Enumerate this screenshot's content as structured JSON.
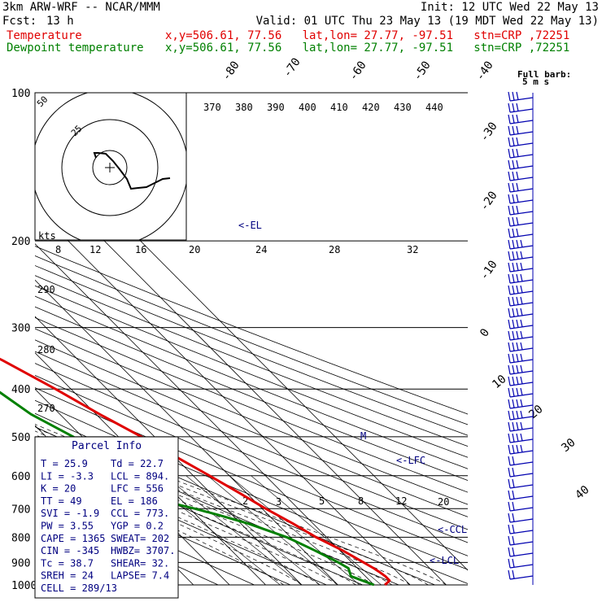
{
  "header": {
    "model": "3km ARW-WRF -- NCAR/MMM",
    "init": "Init: 12 UTC Wed 22 May 13",
    "fcst_label": "Fcst:",
    "fcst_value": "13 h",
    "valid": "Valid: 01 UTC Thu 23 May 13 (19 MDT Wed 22 May 13)",
    "temp_label": "Temperature",
    "temp_loc": "x,y=506.61, 77.56   lat,lon= 27.77, -97.51   stn=CRP ,72251",
    "dew_label": "Dewpoint temperature",
    "dew_loc": "x,y=506.61, 77.56   lat,lon= 27.77, -97.51   stn=CRP ,72251"
  },
  "colors": {
    "temperature": "#e00000",
    "dewpoint": "#008000",
    "barbs": "#0000b0",
    "text_blue": "#000080"
  },
  "parcel_info": {
    "title": "Parcel Info",
    "rows": [
      [
        "T  =   25.9",
        "Td =  22.7"
      ],
      [
        "LI =   -3.3",
        "LCL =  894."
      ],
      [
        "K  =     20",
        "LFC =  556"
      ],
      [
        "TT =     49",
        "EL  =  186"
      ],
      [
        "SVI =  -1.9",
        "CCL =  773."
      ],
      [
        "PW =   3.55",
        "YGP =   0.2"
      ],
      [
        "CAPE =  1365",
        "SWEAT=  202"
      ],
      [
        "CIN =  -345",
        "HWBZ= 3707."
      ],
      [
        "Tc =   38.7",
        "SHEAR=  32."
      ],
      [
        "SREH =   24",
        "LAPSE=  7.4"
      ],
      [
        "CELL = 289/13",
        ""
      ]
    ]
  },
  "hodograph": {
    "kts_label": "kts",
    "ring_labels": [
      "25",
      "50"
    ],
    "points": [
      [
        209,
        219
      ],
      [
        200,
        220
      ],
      [
        190,
        225
      ],
      [
        180,
        230
      ],
      [
        170,
        231
      ],
      [
        161,
        232
      ],
      [
        156,
        220
      ],
      [
        147,
        208
      ],
      [
        139,
        198
      ],
      [
        130,
        189
      ],
      [
        121,
        188
      ],
      [
        116,
        188
      ],
      [
        118,
        194
      ]
    ]
  },
  "barb_title": "Full barb:",
  "barb_units": "5 m s",
  "chart_data": {
    "type": "skew-T log-P sounding",
    "pressure_levels_hPa": [
      100,
      200,
      300,
      400,
      500,
      600,
      700,
      800,
      900,
      1000
    ],
    "isotherm_labels": [
      "-80",
      "-70",
      "-60",
      "-50",
      "-40",
      "-30",
      "-20",
      "-10",
      "0",
      "10",
      "20",
      "30",
      "40"
    ],
    "theta_e_labels": [
      "370",
      "380",
      "390",
      "400",
      "410",
      "420",
      "430",
      "440"
    ],
    "theta_labels": [
      "290",
      "280",
      "270"
    ],
    "mixing_ratio_labels": [
      "2",
      "3",
      "5",
      "8",
      "12",
      "20"
    ],
    "height_scale_labels": [
      "8",
      "12",
      "16",
      "20",
      "24",
      "28",
      "32"
    ],
    "annotations": {
      "el": "<-EL",
      "lfc": "<-LFC",
      "ccl": "<-CCL",
      "lcl": "<-LCL",
      "m": "M"
    },
    "series": [
      {
        "name": "Temperature",
        "trace": [
          [
            1000,
            23
          ],
          [
            980,
            25.5
          ],
          [
            960,
            25.5
          ],
          [
            940,
            25
          ],
          [
            925,
            24.5
          ],
          [
            900,
            23.3
          ],
          [
            850,
            20.7
          ],
          [
            800,
            17.1
          ],
          [
            750,
            14.4
          ],
          [
            700,
            11
          ],
          [
            650,
            8
          ],
          [
            600,
            4.5
          ],
          [
            550,
            0.5
          ],
          [
            500,
            -3.6
          ],
          [
            450,
            -9
          ],
          [
            400,
            -14.3
          ],
          [
            350,
            -21
          ],
          [
            300,
            -30
          ],
          [
            250,
            -41
          ],
          [
            225,
            -48.5
          ],
          [
            200,
            -55.5
          ],
          [
            175,
            -61
          ],
          [
            150,
            -64.5
          ],
          [
            125,
            -68
          ],
          [
            110,
            -72
          ],
          [
            100,
            -73
          ]
        ]
      },
      {
        "name": "Dewpoint temperature",
        "trace": [
          [
            1000,
            20
          ],
          [
            980,
            18
          ],
          [
            960,
            16
          ],
          [
            925,
            17.5
          ],
          [
            900,
            16.3
          ],
          [
            850,
            13
          ],
          [
            800,
            9
          ],
          [
            750,
            2
          ],
          [
            720,
            -4
          ],
          [
            700,
            -8.6
          ],
          [
            680,
            -14
          ],
          [
            660,
            -19
          ],
          [
            640,
            -26
          ],
          [
            625,
            -40
          ],
          [
            610,
            -31
          ],
          [
            580,
            -23
          ],
          [
            550,
            -21.8
          ],
          [
            500,
            -22.5
          ],
          [
            450,
            -28
          ],
          [
            400,
            -31
          ],
          [
            350,
            -38.5
          ],
          [
            300,
            -48.6
          ],
          [
            250,
            -62
          ],
          [
            200,
            -75.5
          ],
          [
            180,
            -77
          ],
          [
            150,
            -80
          ],
          [
            125,
            -82
          ],
          [
            110,
            -84
          ],
          [
            100,
            -85.4
          ]
        ]
      }
    ]
  }
}
